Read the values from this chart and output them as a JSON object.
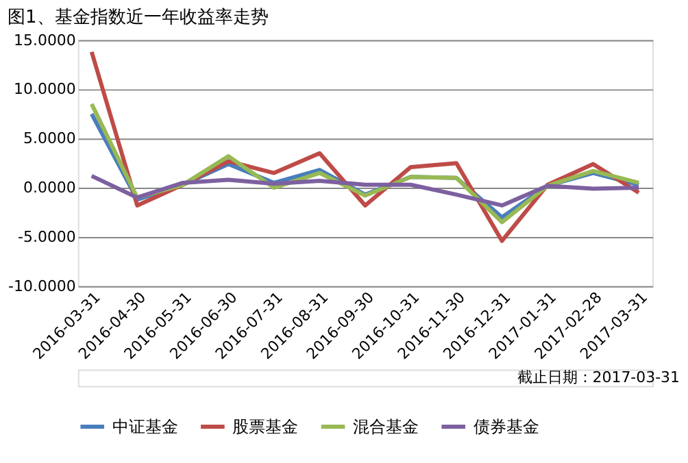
{
  "chart_data": {
    "type": "line",
    "title": "图1、基金指数近一年收益率走势",
    "categories": [
      "2016-03-31",
      "2016-04-30",
      "2016-05-31",
      "2016-06-30",
      "2016-07-31",
      "2016-08-31",
      "2016-09-30",
      "2016-10-31",
      "2016-11-30",
      "2016-12-31",
      "2017-01-31",
      "2017-02-28",
      "2017-03-31"
    ],
    "series": [
      {
        "name": "中证基金",
        "color": "#4a7ebb",
        "values": [
          7.5,
          -1.2,
          0.3,
          2.4,
          0.5,
          1.8,
          -0.7,
          1.1,
          1.0,
          -3.0,
          0.2,
          1.5,
          0.3
        ]
      },
      {
        "name": "股票基金",
        "color": "#be4b48",
        "values": [
          13.8,
          -1.8,
          0.3,
          2.7,
          1.5,
          3.5,
          -1.8,
          2.1,
          2.5,
          -5.4,
          0.3,
          2.4,
          -0.5
        ]
      },
      {
        "name": "混合基金",
        "color": "#98b954",
        "values": [
          8.5,
          -1.0,
          0.3,
          3.2,
          0.0,
          1.5,
          -0.8,
          1.1,
          1.0,
          -3.5,
          0.2,
          1.7,
          0.5
        ]
      },
      {
        "name": "债券基金",
        "color": "#7d60a0",
        "values": [
          1.2,
          -1.0,
          0.5,
          0.8,
          0.4,
          0.7,
          0.3,
          0.3,
          -0.7,
          -1.8,
          0.2,
          -0.1,
          0.0
        ]
      }
    ],
    "ylim": [
      -10,
      15
    ],
    "yticks": [
      {
        "value": -10,
        "label": "-10.0000"
      },
      {
        "value": -5,
        "label": "-5.0000"
      },
      {
        "value": 0,
        "label": "0.0000"
      },
      {
        "value": 5,
        "label": "5.0000"
      },
      {
        "value": 10,
        "label": "10.0000"
      },
      {
        "value": 15,
        "label": "15.0000"
      }
    ],
    "grid": "y",
    "legend": "bottom",
    "marker": "none",
    "line_style": "solid",
    "annotations": [
      "截止日期：2017-03-31"
    ]
  }
}
